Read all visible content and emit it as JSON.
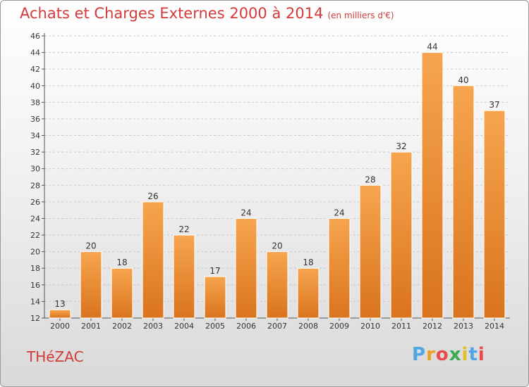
{
  "header": {
    "title": "Achats et Charges Externes 2000 à 2014",
    "subtitle": "(en milliers d'€)"
  },
  "footer": {
    "commune": "THéZAC",
    "brand_letters": [
      "P",
      "r",
      "o",
      "x",
      "i",
      "t",
      "i"
    ]
  },
  "colors": {
    "bar_light": "#f7a54f",
    "bar_dark": "#d9741d",
    "title": "#d33a3a"
  },
  "chart_data": {
    "type": "bar",
    "title": "Achats et Charges Externes 2000 à 2014",
    "subtitle": "(en milliers d'€)",
    "xlabel": "",
    "ylabel": "",
    "categories": [
      "2000",
      "2001",
      "2002",
      "2003",
      "2004",
      "2005",
      "2006",
      "2007",
      "2008",
      "2009",
      "2010",
      "2011",
      "2012",
      "2013",
      "2014"
    ],
    "values": [
      13,
      20,
      18,
      26,
      22,
      17,
      24,
      20,
      18,
      24,
      28,
      32,
      44,
      40,
      37
    ],
    "ylim": [
      12,
      46
    ],
    "yticks": [
      12,
      14,
      16,
      18,
      20,
      22,
      24,
      26,
      28,
      30,
      32,
      34,
      36,
      38,
      40,
      42,
      44,
      46
    ],
    "grid": true,
    "legend": "none"
  }
}
